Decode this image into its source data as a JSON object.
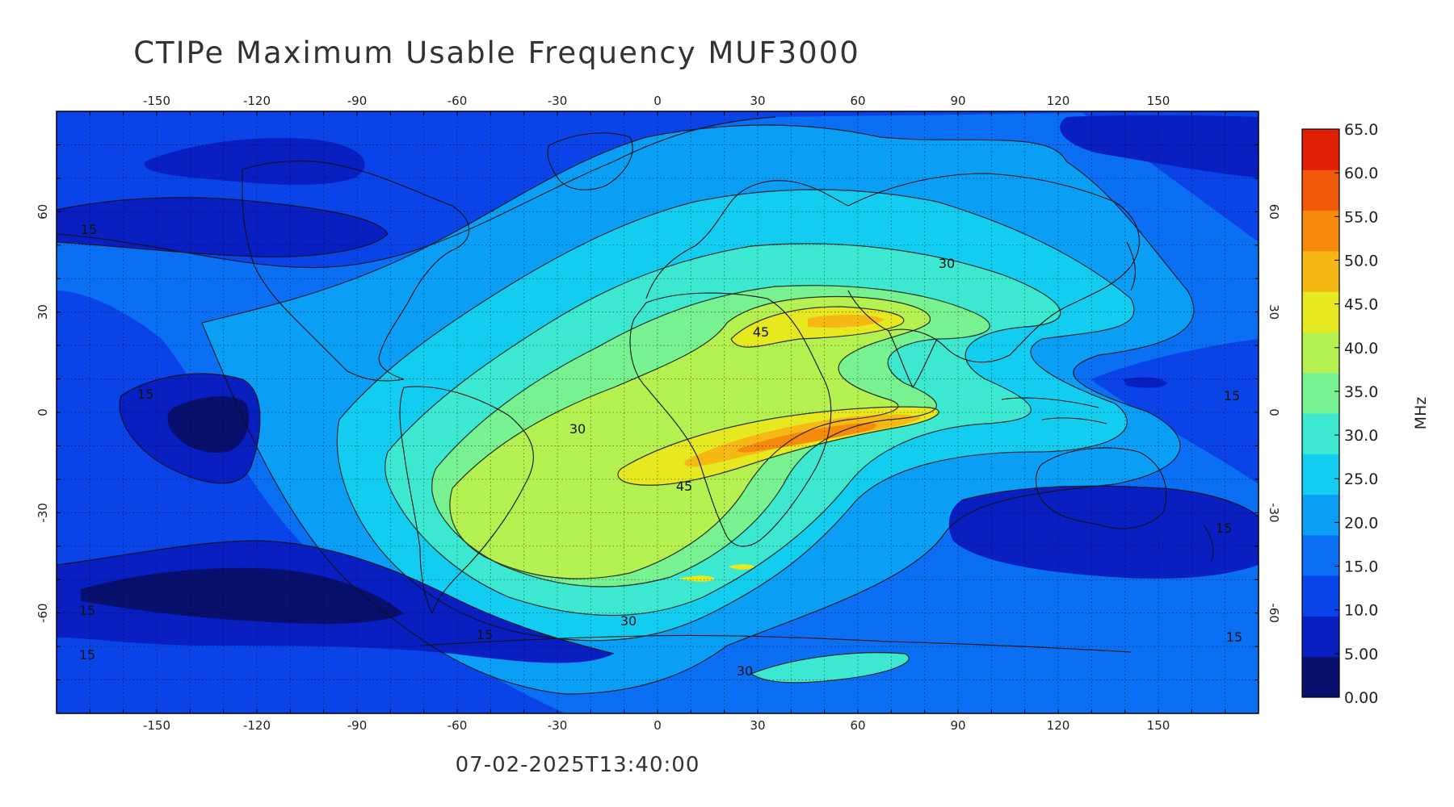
{
  "title": "CTIPe Maximum Usable Frequency MUF3000",
  "timestamp": "07-02-2025T13:40:00",
  "colorbar": {
    "unit": "MHz",
    "min": 0,
    "max": 65,
    "tick_labels": [
      "0.00",
      "5.00",
      "10.0",
      "15.0",
      "20.0",
      "25.0",
      "30.0",
      "35.0",
      "40.0",
      "45.0",
      "50.0",
      "55.0",
      "60.0",
      "65.0"
    ],
    "tick_values": [
      0,
      5,
      10,
      15,
      20,
      25,
      30,
      35,
      40,
      45,
      50,
      55,
      60,
      65
    ],
    "colors": [
      "#08106e",
      "#0a1fc2",
      "#0a44e8",
      "#0a6ff2",
      "#0a9ef4",
      "#12cdf0",
      "#3ce8d0",
      "#78f290",
      "#b4f050",
      "#e6e820",
      "#f6b814",
      "#f68a0c",
      "#f05a08",
      "#e01e04"
    ]
  },
  "map": {
    "lon_ticks": [
      "-150",
      "-120",
      "-90",
      "-60",
      "-30",
      "0",
      "30",
      "60",
      "90",
      "120",
      "150"
    ],
    "lon_values": [
      -150,
      -120,
      -90,
      -60,
      -30,
      0,
      30,
      60,
      90,
      120,
      150
    ],
    "lat_ticks": [
      "60",
      "30",
      "0",
      "-30",
      "-60"
    ],
    "lat_values": [
      60,
      30,
      0,
      -30,
      -60
    ],
    "lon_range": [
      -180,
      180
    ],
    "lat_range": [
      -90,
      90
    ],
    "grid": true,
    "contour_labels": [
      "15",
      "15",
      "15",
      "15",
      "15",
      "15",
      "30",
      "30",
      "30",
      "30",
      "45",
      "45",
      "15",
      "15"
    ]
  }
}
